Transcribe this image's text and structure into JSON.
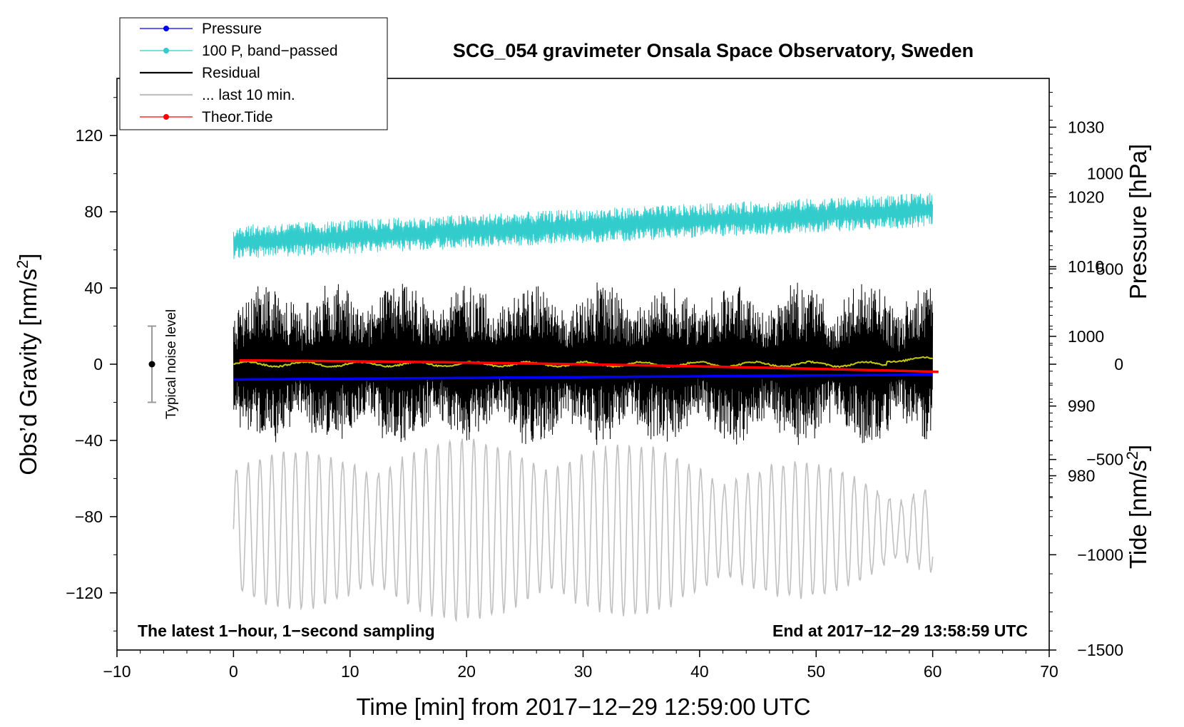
{
  "chart_data": {
    "type": "line",
    "title": "SCG_054 gravimeter Onsala Space Observatory, Sweden",
    "xlabel": "Time [min] from 2017−12−29 12:59:00 UTC",
    "ylabel": "Obs’d Gravity [nm/s",
    "ylabel_sup": "2",
    "ylabel_end": "]",
    "y2label": "Pressure [hPa]",
    "y3label": "Tide [nm/s",
    "y3label_sup": "2",
    "y3label_end": "]",
    "xlim": [
      -10,
      70
    ],
    "ylim": [
      -150,
      150
    ],
    "y2lim": [
      955,
      1037
    ],
    "y3lim": [
      -1500,
      1500
    ],
    "x_ticks": [
      "−10",
      "0",
      "10",
      "20",
      "30",
      "40",
      "50",
      "60",
      "70"
    ],
    "x_tick_values": [
      -10,
      0,
      10,
      20,
      30,
      40,
      50,
      60,
      70
    ],
    "y_ticks": [
      "120",
      "80",
      "40",
      "0",
      "−40",
      "−80",
      "−120"
    ],
    "y_tick_values": [
      120,
      80,
      40,
      0,
      -40,
      -80,
      -120
    ],
    "y2_ticks": [
      "1030",
      "1020",
      "1010",
      "1000",
      "990",
      "980"
    ],
    "y2_tick_values": [
      1030,
      1020,
      1010,
      1000,
      990,
      980
    ],
    "y3_ticks": [
      "1000",
      "500",
      "0",
      "−500",
      "−1000",
      "−1500"
    ],
    "y3_tick_values": [
      1000,
      500,
      0,
      -500,
      -1000,
      -1500
    ],
    "legend": [
      {
        "label": "Pressure",
        "color": "#0000ff",
        "marker": true
      },
      {
        "label": "100 P, band−passed",
        "color": "#33cccc",
        "marker": true
      },
      {
        "label": "Residual",
        "color": "#000000",
        "marker": false
      },
      {
        "label": "... last 10 min.",
        "color": "#c0c0c0",
        "marker": false
      },
      {
        "label": "Theor.Tide",
        "color": "#ff0000",
        "marker": true
      }
    ],
    "legend_position": "top-left",
    "annotation_left": "The latest 1−hour, 1−second sampling",
    "annotation_right": "End at 2017−12−29 13:58:59 UTC",
    "noise_label": "Typical noise level",
    "noise_bar": {
      "x": -7,
      "center": 0,
      "half_range": 20
    },
    "series": [
      {
        "name": "Pressure",
        "axis": "pressure",
        "color": "#0000ff",
        "x_range": [
          0,
          60
        ],
        "start": 993.8,
        "end": 994.5
      },
      {
        "name": "100 P, band-passed",
        "axis": "gravity",
        "color": "#33cccc",
        "x_range": [
          0,
          60
        ],
        "baseline_start": 64,
        "baseline_end": 81,
        "amplitude": 9
      },
      {
        "name": "Residual",
        "axis": "gravity",
        "color": "#000000",
        "x_range": [
          0,
          60
        ],
        "center": 0,
        "amplitude": 45
      },
      {
        "name": "Residual (smoothed)",
        "axis": "gravity",
        "color": "#c8c800",
        "x_range": [
          0,
          60
        ],
        "center": 0
      },
      {
        "name": "... last 10 min.",
        "axis": "gravity",
        "color": "#c0c0c0",
        "x_range": [
          0,
          60
        ],
        "center": -87,
        "amplitude": 38
      },
      {
        "name": "Theor.Tide",
        "axis": "tide",
        "color": "#ff0000",
        "x_range": [
          0.5,
          60.5
        ],
        "start": 20,
        "end": -40
      }
    ]
  }
}
